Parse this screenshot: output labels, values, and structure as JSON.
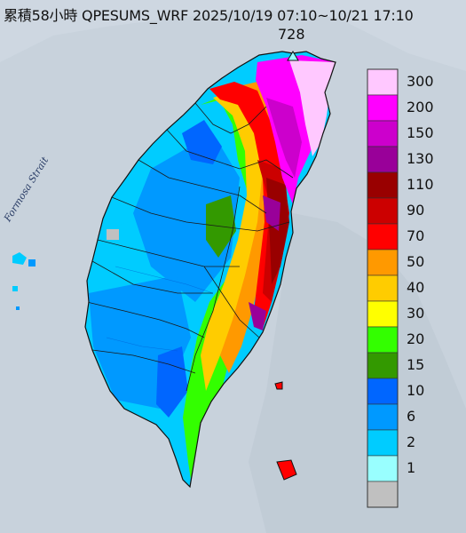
{
  "title": "累積58小時 QPESUMS_WRF 2025/10/19 07:10~10/21 17:10",
  "max_value": "728",
  "sea_label": "Formosa Strait",
  "legend": {
    "items": [
      {
        "label": "300",
        "color": "#ffc8ff"
      },
      {
        "label": "200",
        "color": "#ff00ff"
      },
      {
        "label": "150",
        "color": "#cc00cc"
      },
      {
        "label": "130",
        "color": "#990099"
      },
      {
        "label": "110",
        "color": "#990000"
      },
      {
        "label": "90",
        "color": "#cc0000"
      },
      {
        "label": "70",
        "color": "#ff0000"
      },
      {
        "label": "50",
        "color": "#ff9900"
      },
      {
        "label": "40",
        "color": "#ffcc00"
      },
      {
        "label": "30",
        "color": "#ffff00"
      },
      {
        "label": "20",
        "color": "#33ff00"
      },
      {
        "label": "15",
        "color": "#339900"
      },
      {
        "label": "10",
        "color": "#0066ff"
      },
      {
        "label": "6",
        "color": "#0099ff"
      },
      {
        "label": "2",
        "color": "#00ccff"
      },
      {
        "label": "1",
        "color": "#99ffff"
      },
      {
        "label": "",
        "color": "#c0c0c0"
      }
    ]
  },
  "colors": {
    "sea": "#c8d2dc",
    "background_land": "#aab6c2"
  }
}
